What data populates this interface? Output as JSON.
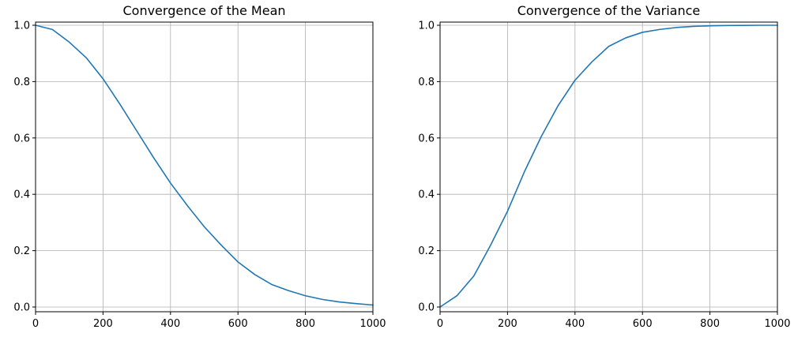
{
  "chart_data": [
    {
      "type": "line",
      "title": "Convergence of the Mean",
      "xlabel": "",
      "ylabel": "",
      "xlim": [
        0,
        1000
      ],
      "ylim": [
        0.0,
        1.0
      ],
      "xticks": [
        "0",
        "200",
        "400",
        "600",
        "800",
        "1000"
      ],
      "yticks": [
        "0.0",
        "0.2",
        "0.4",
        "0.6",
        "0.8",
        "1.0"
      ],
      "grid": true,
      "series": [
        {
          "color": "#1f77b4",
          "x": [
            0,
            50,
            100,
            150,
            200,
            250,
            300,
            350,
            400,
            450,
            500,
            550,
            600,
            650,
            700,
            750,
            800,
            850,
            900,
            950,
            1000
          ],
          "y": [
            1.0,
            0.985,
            0.94,
            0.885,
            0.81,
            0.72,
            0.625,
            0.53,
            0.44,
            0.36,
            0.285,
            0.22,
            0.16,
            0.115,
            0.08,
            0.058,
            0.04,
            0.027,
            0.018,
            0.012,
            0.007
          ]
        }
      ]
    },
    {
      "type": "line",
      "title": "Convergence of the Variance",
      "xlabel": "",
      "ylabel": "",
      "xlim": [
        0,
        1000
      ],
      "ylim": [
        0.0,
        1.0
      ],
      "xticks": [
        "0",
        "200",
        "400",
        "600",
        "800",
        "1000"
      ],
      "yticks": [
        "0.0",
        "0.2",
        "0.4",
        "0.6",
        "0.8",
        "1.0"
      ],
      "grid": true,
      "series": [
        {
          "color": "#1f77b4",
          "x": [
            0,
            50,
            100,
            150,
            200,
            250,
            300,
            350,
            400,
            450,
            500,
            550,
            600,
            650,
            700,
            750,
            800,
            850,
            900,
            950,
            1000
          ],
          "y": [
            0.0,
            0.04,
            0.11,
            0.22,
            0.34,
            0.48,
            0.605,
            0.715,
            0.805,
            0.87,
            0.925,
            0.955,
            0.975,
            0.985,
            0.992,
            0.996,
            0.998,
            0.999,
            0.9995,
            1.0,
            1.0
          ]
        }
      ]
    }
  ]
}
